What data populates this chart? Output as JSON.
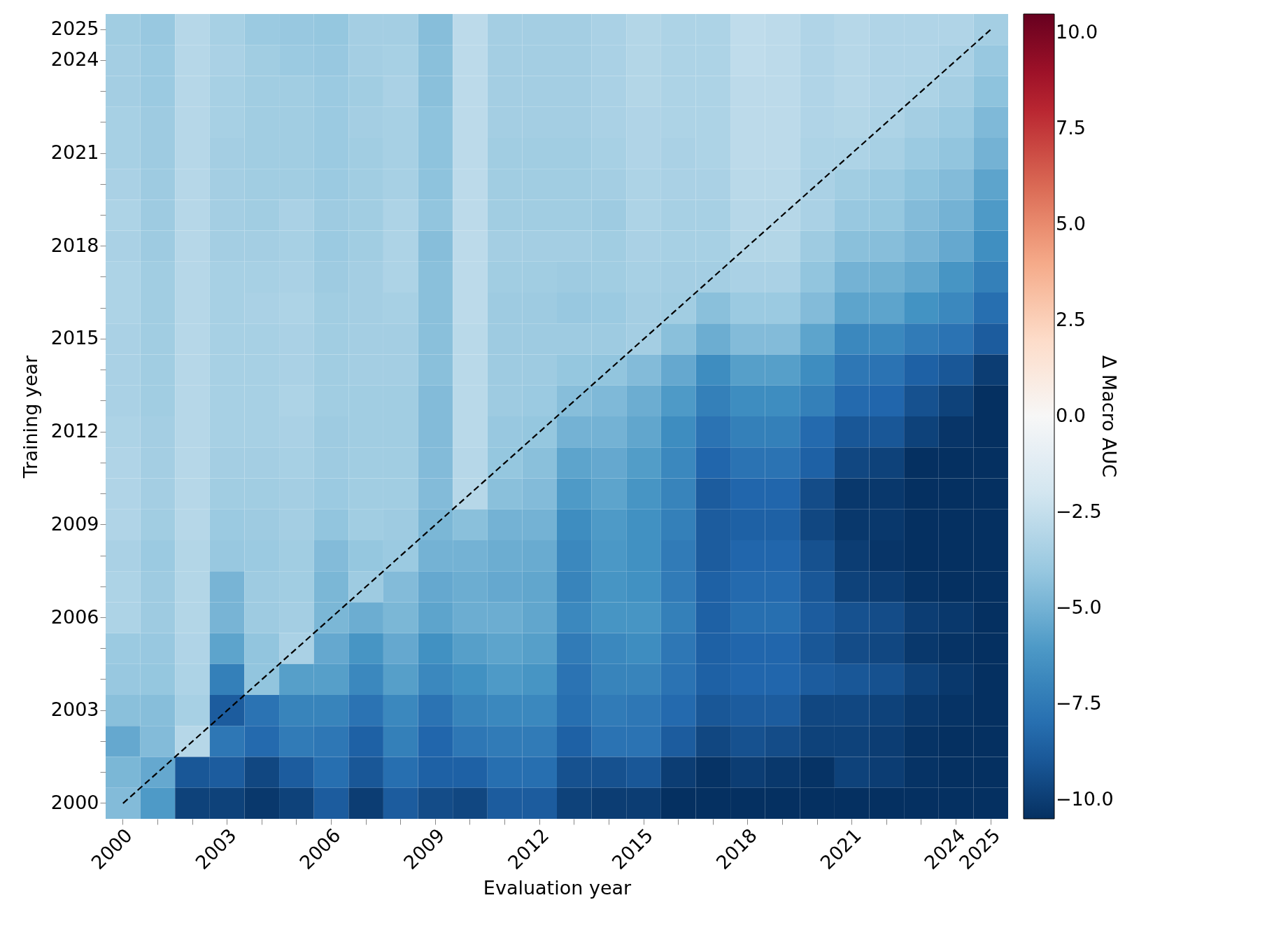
{
  "chart_data": {
    "type": "heatmap",
    "xlabel": "Evaluation year",
    "ylabel": "Training year",
    "clabel": "Δ Macro AUC",
    "categories": [
      "2000",
      null,
      null,
      "2003",
      null,
      null,
      "2006",
      null,
      null,
      "2009",
      null,
      null,
      "2012",
      null,
      null,
      "2015",
      null,
      null,
      "2018",
      null,
      null,
      "2021",
      null,
      null,
      "2024",
      "2025"
    ],
    "y_categories": [
      "2025",
      "2024",
      null,
      null,
      "2021",
      null,
      null,
      "2018",
      null,
      null,
      "2015",
      null,
      null,
      "2012",
      null,
      null,
      "2009",
      null,
      null,
      "2006",
      null,
      null,
      "2003",
      null,
      null,
      "2000"
    ],
    "clim": [
      -10.5,
      10.5
    ],
    "cticks": [
      {
        "value": -10,
        "label": "−10.0"
      },
      {
        "value": -7.5,
        "label": "−7.5"
      },
      {
        "value": -5,
        "label": "−5.0"
      },
      {
        "value": -2.5,
        "label": "−2.5"
      },
      {
        "value": 0,
        "label": "0.0"
      },
      {
        "value": 2.5,
        "label": "2.5"
      },
      {
        "value": 5,
        "label": "5.0"
      },
      {
        "value": 7.5,
        "label": "7.5"
      },
      {
        "value": 10,
        "label": "10.0"
      }
    ],
    "cells": [
      [
        -3.7,
        -4.0,
        -3.0,
        -3.5,
        -3.9,
        -4.0,
        -4.1,
        -3.6,
        -3.6,
        -4.5,
        -2.8,
        -3.6,
        -3.6,
        -3.6,
        -3.4,
        -3.1,
        -3.3,
        -3.3,
        -2.7,
        -2.8,
        -3.2,
        -3.0,
        -3.2,
        -3.2,
        -3.2,
        -3.6
      ],
      [
        -3.6,
        -3.9,
        -3.0,
        -3.4,
        -3.7,
        -3.9,
        -4.0,
        -3.6,
        -3.5,
        -4.4,
        -2.8,
        -3.6,
        -3.6,
        -3.6,
        -3.4,
        -3.1,
        -3.3,
        -3.3,
        -2.7,
        -2.8,
        -3.2,
        -3.0,
        -3.2,
        -3.2,
        -3.4,
        -4.0
      ],
      [
        -3.6,
        -3.9,
        -3.0,
        -3.5,
        -3.7,
        -3.7,
        -3.9,
        -3.7,
        -3.4,
        -4.4,
        -2.8,
        -3.6,
        -3.6,
        -3.6,
        -3.4,
        -3.1,
        -3.3,
        -3.3,
        -2.8,
        -2.8,
        -3.2,
        -3.0,
        -3.2,
        -3.3,
        -3.6,
        -4.3
      ],
      [
        -3.5,
        -3.8,
        -3.0,
        -3.5,
        -3.7,
        -3.7,
        -3.9,
        -3.6,
        -3.5,
        -4.3,
        -2.8,
        -3.6,
        -3.6,
        -3.6,
        -3.4,
        -3.2,
        -3.3,
        -3.3,
        -2.8,
        -2.8,
        -3.2,
        -3.1,
        -3.3,
        -3.6,
        -3.9,
        -4.7
      ],
      [
        -3.5,
        -3.8,
        -3.0,
        -3.6,
        -3.7,
        -3.7,
        -3.9,
        -3.7,
        -3.5,
        -4.3,
        -2.8,
        -3.7,
        -3.7,
        -3.7,
        -3.5,
        -3.2,
        -3.4,
        -3.3,
        -2.8,
        -2.8,
        -3.3,
        -3.3,
        -3.5,
        -3.9,
        -4.2,
        -5.0
      ],
      [
        -3.4,
        -3.8,
        -3.0,
        -3.6,
        -3.7,
        -3.7,
        -3.9,
        -3.7,
        -3.5,
        -4.3,
        -2.8,
        -3.7,
        -3.7,
        -3.7,
        -3.6,
        -3.3,
        -3.4,
        -3.4,
        -2.9,
        -2.9,
        -3.4,
        -3.7,
        -3.9,
        -4.3,
        -4.6,
        -5.6
      ],
      [
        -3.3,
        -3.8,
        -3.0,
        -3.6,
        -3.7,
        -3.4,
        -3.8,
        -3.7,
        -3.3,
        -4.2,
        -2.8,
        -3.7,
        -3.7,
        -3.7,
        -3.8,
        -3.3,
        -3.5,
        -3.5,
        -3.0,
        -3.0,
        -3.4,
        -4.0,
        -4.1,
        -4.6,
        -5.0,
        -6.0
      ],
      [
        -3.4,
        -3.8,
        -3.0,
        -3.6,
        -3.6,
        -3.5,
        -3.9,
        -3.7,
        -3.3,
        -4.5,
        -2.8,
        -3.6,
        -3.6,
        -3.6,
        -3.7,
        -3.4,
        -3.5,
        -3.5,
        -3.1,
        -3.1,
        -3.8,
        -4.4,
        -4.5,
        -4.9,
        -5.4,
        -6.5
      ],
      [
        -3.3,
        -3.7,
        -3.0,
        -3.5,
        -3.5,
        -3.4,
        -3.8,
        -3.6,
        -3.3,
        -4.4,
        -2.8,
        -3.7,
        -3.7,
        -3.8,
        -3.7,
        -3.5,
        -3.6,
        -3.6,
        -3.4,
        -3.4,
        -4.2,
        -5.0,
        -5.1,
        -5.5,
        -6.2,
        -7.2
      ],
      [
        -3.3,
        -3.7,
        -3.0,
        -3.5,
        -3.4,
        -3.3,
        -3.7,
        -3.6,
        -3.5,
        -4.4,
        -2.8,
        -3.8,
        -3.8,
        -4.0,
        -3.9,
        -3.6,
        -3.7,
        -4.4,
        -3.9,
        -3.9,
        -4.6,
        -5.6,
        -5.6,
        -6.3,
        -6.8,
        -8.0
      ],
      [
        -3.4,
        -3.7,
        -3.0,
        -3.5,
        -3.5,
        -3.4,
        -3.7,
        -3.6,
        -3.6,
        -4.4,
        -2.9,
        -3.8,
        -3.8,
        -3.8,
        -3.8,
        -3.6,
        -4.4,
        -5.2,
        -4.6,
        -4.6,
        -5.6,
        -6.8,
        -6.8,
        -7.4,
        -7.8,
        -8.8
      ],
      [
        -3.4,
        -3.7,
        -3.0,
        -3.5,
        -3.5,
        -3.4,
        -3.7,
        -3.6,
        -3.6,
        -4.4,
        -2.9,
        -3.8,
        -3.8,
        -4.1,
        -4.2,
        -4.6,
        -5.4,
        -6.6,
        -5.8,
        -5.8,
        -6.6,
        -7.6,
        -7.8,
        -8.6,
        -9.0,
        -10.0
      ],
      [
        -3.4,
        -3.7,
        -3.0,
        -3.5,
        -3.5,
        -3.3,
        -3.7,
        -3.7,
        -3.7,
        -4.6,
        -2.9,
        -3.8,
        -3.9,
        -4.5,
        -4.7,
        -5.2,
        -6.0,
        -7.2,
        -6.6,
        -6.6,
        -7.2,
        -8.2,
        -8.4,
        -9.2,
        -9.8,
        -10.5
      ],
      [
        -3.3,
        -3.6,
        -3.0,
        -3.5,
        -3.5,
        -3.4,
        -3.8,
        -3.7,
        -3.7,
        -4.6,
        -2.9,
        -4.0,
        -4.1,
        -5.0,
        -5.0,
        -5.5,
        -6.6,
        -7.8,
        -7.2,
        -7.2,
        -8.2,
        -9.0,
        -9.0,
        -9.8,
        -10.3,
        -10.5
      ],
      [
        -3.2,
        -3.6,
        -3.0,
        -3.6,
        -3.6,
        -3.5,
        -3.8,
        -3.7,
        -3.7,
        -4.6,
        -3.0,
        -4.1,
        -4.4,
        -5.6,
        -5.4,
        -5.9,
        -6.8,
        -8.4,
        -7.8,
        -7.8,
        -8.6,
        -9.6,
        -9.8,
        -10.5,
        -10.5,
        -10.5
      ],
      [
        -3.2,
        -3.6,
        -3.0,
        -3.7,
        -3.7,
        -3.6,
        -3.9,
        -3.7,
        -3.7,
        -4.6,
        -3.0,
        -4.4,
        -4.6,
        -6.0,
        -5.6,
        -6.2,
        -7.0,
        -8.8,
        -8.4,
        -8.4,
        -9.4,
        -10.2,
        -10.2,
        -10.5,
        -10.5,
        -10.5
      ],
      [
        -3.2,
        -3.7,
        -3.0,
        -3.9,
        -3.8,
        -3.6,
        -4.2,
        -3.7,
        -3.8,
        -4.8,
        -4.4,
        -5.0,
        -5.0,
        -6.6,
        -6.0,
        -6.4,
        -7.2,
        -8.8,
        -8.6,
        -8.6,
        -9.6,
        -10.2,
        -10.2,
        -10.5,
        -10.5,
        -10.5
      ],
      [
        -3.4,
        -3.9,
        -3.1,
        -4.0,
        -3.9,
        -3.7,
        -4.6,
        -4.1,
        -3.9,
        -5.0,
        -5.0,
        -5.2,
        -5.3,
        -6.8,
        -6.1,
        -6.4,
        -7.4,
        -8.8,
        -8.4,
        -8.4,
        -9.2,
        -10.0,
        -10.3,
        -10.5,
        -10.5,
        -10.5
      ],
      [
        -3.3,
        -3.8,
        -3.1,
        -4.9,
        -3.8,
        -3.7,
        -4.8,
        -3.8,
        -4.6,
        -5.4,
        -5.2,
        -5.4,
        -5.5,
        -7.0,
        -6.2,
        -6.4,
        -7.4,
        -8.6,
        -8.2,
        -8.2,
        -9.0,
        -9.8,
        -10.0,
        -10.4,
        -10.5,
        -10.5
      ],
      [
        -3.3,
        -3.8,
        -3.1,
        -4.9,
        -3.8,
        -3.6,
        -4.8,
        -5.2,
        -4.8,
        -5.6,
        -5.2,
        -5.2,
        -5.5,
        -6.8,
        -6.2,
        -6.2,
        -7.2,
        -8.6,
        -8.0,
        -8.0,
        -8.8,
        -9.2,
        -9.4,
        -10.0,
        -10.2,
        -10.5
      ],
      [
        -3.9,
        -4.0,
        -3.2,
        -5.6,
        -4.2,
        -3.4,
        -5.4,
        -6.2,
        -5.4,
        -6.4,
        -5.8,
        -5.6,
        -5.8,
        -7.4,
        -6.8,
        -6.6,
        -7.6,
        -8.6,
        -8.4,
        -8.4,
        -9.0,
        -9.4,
        -9.6,
        -10.2,
        -10.4,
        -10.5
      ],
      [
        -4.0,
        -4.1,
        -3.3,
        -7.2,
        -4.2,
        -5.8,
        -5.8,
        -6.8,
        -5.8,
        -6.8,
        -6.4,
        -6.0,
        -6.2,
        -7.8,
        -7.0,
        -7.0,
        -7.8,
        -8.6,
        -8.4,
        -8.4,
        -8.8,
        -9.0,
        -9.2,
        -9.8,
        -10.2,
        -10.5
      ],
      [
        -4.4,
        -4.5,
        -3.5,
        -8.8,
        -7.8,
        -7.0,
        -7.0,
        -7.8,
        -6.8,
        -7.8,
        -7.0,
        -6.8,
        -6.8,
        -8.0,
        -7.4,
        -7.6,
        -8.2,
        -9.0,
        -8.8,
        -8.8,
        -9.6,
        -9.6,
        -9.8,
        -10.2,
        -10.4,
        -10.5
      ],
      [
        -5.4,
        -4.6,
        -3.0,
        -7.6,
        -8.2,
        -7.4,
        -7.6,
        -8.6,
        -7.2,
        -8.4,
        -7.6,
        -7.4,
        -7.4,
        -8.6,
        -7.8,
        -7.8,
        -8.8,
        -9.6,
        -9.2,
        -9.4,
        -9.8,
        -9.8,
        -10.0,
        -10.4,
        -10.5,
        -10.5
      ],
      [
        -4.8,
        -5.4,
        -9.0,
        -8.8,
        -9.6,
        -8.8,
        -8.0,
        -9.0,
        -8.0,
        -8.6,
        -8.6,
        -8.0,
        -8.0,
        -9.2,
        -9.2,
        -9.0,
        -10.0,
        -10.4,
        -10.0,
        -10.2,
        -10.4,
        -9.8,
        -10.0,
        -10.4,
        -10.5,
        -10.5
      ],
      [
        -4.6,
        -6.0,
        -9.8,
        -9.8,
        -10.2,
        -9.8,
        -8.8,
        -10.0,
        -8.8,
        -9.4,
        -9.6,
        -8.8,
        -8.8,
        -9.8,
        -10.0,
        -10.0,
        -10.5,
        -10.5,
        -10.5,
        -10.5,
        -10.5,
        -10.5,
        -10.5,
        -10.5,
        -10.5,
        -10.5
      ]
    ],
    "series": [
      {
        "type": "line",
        "values": [
          25,
          24,
          23,
          22,
          21,
          20,
          19,
          18,
          17,
          16,
          15,
          14,
          13,
          12,
          11,
          10,
          9,
          8,
          7,
          6,
          5,
          4,
          3,
          2,
          1,
          0
        ],
        "color": "#000000",
        "line_style": "dashed"
      }
    ]
  }
}
